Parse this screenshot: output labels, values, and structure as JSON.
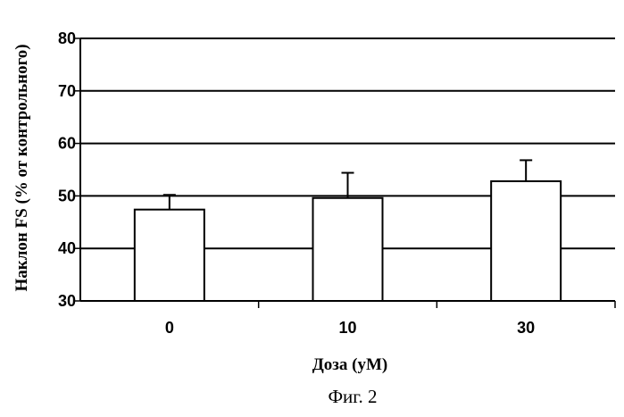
{
  "chart_data": {
    "type": "bar",
    "categories": [
      "0",
      "10",
      "30"
    ],
    "values": [
      47.4,
      49.6,
      52.8
    ],
    "errors": [
      2.8,
      4.8,
      4.0
    ],
    "xlabel": "Доза (уМ)",
    "ylabel": "Наклон FS (% от контрольного)",
    "ylim": [
      30,
      80
    ],
    "yticks": [
      30,
      40,
      50,
      60,
      70,
      80
    ],
    "grid": true,
    "caption": "Фиг. 2",
    "colors": {
      "bar_fill": "#ffffff",
      "bar_stroke": "#000000",
      "grid": "#000000",
      "background": "#ffffff"
    }
  }
}
